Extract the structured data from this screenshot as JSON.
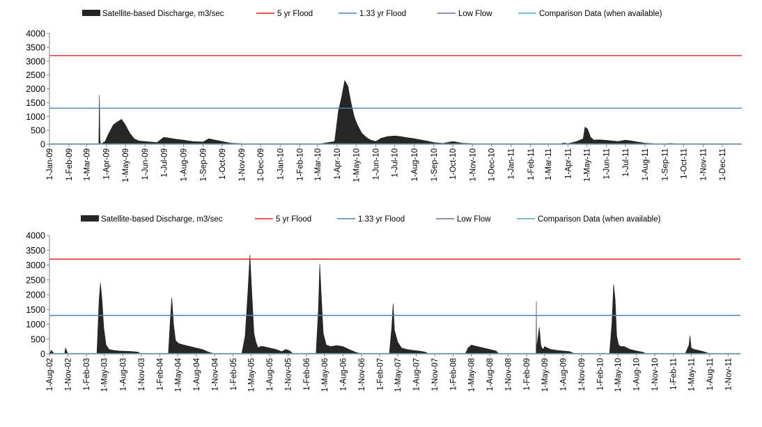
{
  "legend": {
    "discharge": "Satellite-based Discharge, m3/sec",
    "flood5": "5 yr Flood",
    "flood133": "1.33 yr Flood",
    "lowflow": "Low Flow",
    "comparison": "Comparison Data (when available)"
  },
  "colors": {
    "discharge": "#262626",
    "flood5": "#e02020",
    "flood133": "#4f81bd",
    "lowflow": "#8064a2",
    "comparison": "#4bacc6"
  },
  "chart_data": [
    {
      "type": "area",
      "ylim": [
        0,
        4000
      ],
      "yticks": [
        0,
        500,
        1000,
        1500,
        2000,
        2500,
        3000,
        3500,
        4000
      ],
      "ytick_labels": [
        "0",
        "500",
        "1000",
        "1500",
        "2000",
        "2500",
        "3000",
        "3500",
        "4000"
      ],
      "xlim": [
        "2009-01-01",
        "2012-01-01"
      ],
      "xticks": [
        "2009-01-01",
        "2009-02-01",
        "2009-03-01",
        "2009-04-01",
        "2009-05-01",
        "2009-06-01",
        "2009-07-01",
        "2009-08-01",
        "2009-09-01",
        "2009-10-01",
        "2009-11-01",
        "2009-12-01",
        "2010-01-01",
        "2010-02-01",
        "2010-03-01",
        "2010-04-01",
        "2010-05-01",
        "2010-06-01",
        "2010-07-01",
        "2010-08-01",
        "2010-09-01",
        "2010-10-01",
        "2010-11-01",
        "2010-12-01",
        "2011-01-01",
        "2011-02-01",
        "2011-03-01",
        "2011-04-01",
        "2011-05-01",
        "2011-06-01",
        "2011-07-01",
        "2011-08-01",
        "2011-09-01",
        "2011-10-01",
        "2011-11-01",
        "2011-12-01"
      ],
      "xtick_labels": [
        "1-Jan-09",
        "1-Feb-09",
        "1-Mar-09",
        "1-Apr-09",
        "1-May-09",
        "1-Jun-09",
        "1-Jul-09",
        "1-Aug-09",
        "1-Sep-09",
        "1-Oct-09",
        "1-Nov-09",
        "1-Dec-09",
        "1-Jan-10",
        "1-Feb-10",
        "1-Mar-10",
        "1-Apr-10",
        "1-May-10",
        "1-Jun-10",
        "1-Jul-10",
        "1-Aug-10",
        "1-Sep-10",
        "1-Oct-10",
        "1-Nov-10",
        "1-Dec-10",
        "1-Jan-11",
        "1-Feb-11",
        "1-Mar-11",
        "1-Apr-11",
        "1-May-11",
        "1-Jun-11",
        "1-Jul-11",
        "1-Aug-11",
        "1-Sep-11",
        "1-Oct-11",
        "1-Nov-11",
        "1-Dec-11"
      ],
      "flood5": 3200,
      "flood133": 1300,
      "lowflow": 0,
      "comparison": 0,
      "discharge": {
        "x": [
          "2009-01-01",
          "2009-03-10",
          "2009-03-20",
          "2009-03-21",
          "2009-03-22",
          "2009-03-23",
          "2009-03-30",
          "2009-04-05",
          "2009-04-12",
          "2009-04-18",
          "2009-04-25",
          "2009-05-01",
          "2009-05-08",
          "2009-05-15",
          "2009-05-22",
          "2009-06-01",
          "2009-06-10",
          "2009-06-20",
          "2009-07-01",
          "2009-07-10",
          "2009-07-20",
          "2009-08-01",
          "2009-08-15",
          "2009-09-01",
          "2009-09-10",
          "2009-09-20",
          "2009-10-01",
          "2009-10-15",
          "2009-11-01",
          "2009-12-01",
          "2010-01-01",
          "2010-03-01",
          "2010-03-28",
          "2010-04-03",
          "2010-04-08",
          "2010-04-13",
          "2010-04-18",
          "2010-04-23",
          "2010-04-28",
          "2010-05-03",
          "2010-05-10",
          "2010-05-17",
          "2010-05-24",
          "2010-06-01",
          "2010-06-10",
          "2010-06-20",
          "2010-07-01",
          "2010-07-10",
          "2010-07-20",
          "2010-08-01",
          "2010-08-10",
          "2010-08-20",
          "2010-09-01",
          "2010-09-15",
          "2010-10-01",
          "2010-10-15",
          "2010-11-01",
          "2010-12-01",
          "2011-01-01",
          "2011-03-20",
          "2011-03-25",
          "2011-04-01",
          "2011-04-15",
          "2011-04-25",
          "2011-04-28",
          "2011-05-02",
          "2011-05-07",
          "2011-05-12",
          "2011-05-20",
          "2011-06-01",
          "2011-06-10",
          "2011-06-20",
          "2011-07-01",
          "2011-07-10",
          "2011-07-20",
          "2011-08-01",
          "2011-08-15",
          "2011-09-01",
          "2011-09-10",
          "2011-09-20",
          "2011-10-01",
          "2011-11-01",
          "2011-12-31"
        ],
        "y": [
          0,
          0,
          0,
          1780,
          150,
          0,
          100,
          400,
          700,
          800,
          900,
          700,
          400,
          200,
          120,
          100,
          80,
          60,
          250,
          220,
          180,
          150,
          100,
          80,
          200,
          150,
          100,
          40,
          20,
          5,
          0,
          0,
          100,
          1200,
          1700,
          2300,
          2100,
          1500,
          1000,
          700,
          400,
          250,
          150,
          100,
          220,
          280,
          300,
          280,
          240,
          200,
          160,
          120,
          60,
          30,
          100,
          40,
          20,
          10,
          0,
          0,
          50,
          20,
          100,
          200,
          620,
          550,
          250,
          150,
          160,
          140,
          120,
          100,
          150,
          120,
          80,
          40,
          20,
          10,
          30,
          10,
          5,
          0,
          0
        ]
      }
    },
    {
      "type": "area",
      "ylim": [
        0,
        4000
      ],
      "yticks": [
        0,
        500,
        1000,
        1500,
        2000,
        2500,
        3000,
        3500,
        4000
      ],
      "ytick_labels": [
        "0",
        "500",
        "1000",
        "1500",
        "2000",
        "2500",
        "3000",
        "3500",
        "4000"
      ],
      "xlim": [
        "2002-08-01",
        "2012-01-01"
      ],
      "xticks": [
        "2002-08-01",
        "2002-11-01",
        "2003-02-01",
        "2003-05-01",
        "2003-08-01",
        "2003-11-01",
        "2004-02-01",
        "2004-05-01",
        "2004-08-01",
        "2004-11-01",
        "2005-02-01",
        "2005-05-01",
        "2005-08-01",
        "2005-11-01",
        "2006-02-01",
        "2006-05-01",
        "2006-08-01",
        "2006-11-01",
        "2007-02-01",
        "2007-05-01",
        "2007-08-01",
        "2007-11-01",
        "2008-02-01",
        "2008-05-01",
        "2008-08-01",
        "2008-11-01",
        "2009-02-01",
        "2009-05-01",
        "2009-08-01",
        "2009-11-01",
        "2010-02-01",
        "2010-05-01",
        "2010-08-01",
        "2010-11-01",
        "2011-02-01",
        "2011-05-01",
        "2011-08-01",
        "2011-11-01"
      ],
      "xtick_labels": [
        "1-Aug-02",
        "1-Nov-02",
        "1-Feb-03",
        "1-May-03",
        "1-Aug-03",
        "1-Nov-03",
        "1-Feb-04",
        "1-May-04",
        "1-Aug-04",
        "1-Nov-04",
        "1-Feb-05",
        "1-May-05",
        "1-Aug-05",
        "1-Nov-05",
        "1-Feb-06",
        "1-May-06",
        "1-Aug-06",
        "1-Nov-06",
        "1-Feb-07",
        "1-May-07",
        "1-Aug-07",
        "1-Nov-07",
        "1-Feb-08",
        "1-May-08",
        "1-Aug-08",
        "1-Nov-08",
        "1-Feb-09",
        "1-May-09",
        "1-Aug-09",
        "1-Nov-09",
        "1-Feb-10",
        "1-May-10",
        "1-Aug-10",
        "1-Nov-10",
        "1-Feb-11",
        "1-May-11",
        "1-Aug-11",
        "1-Nov-11"
      ],
      "flood5": 3200,
      "flood133": 1300,
      "lowflow": 0,
      "comparison": 0,
      "discharge": {
        "x": [
          "2002-08-01",
          "2002-08-10",
          "2002-08-25",
          "2002-09-20",
          "2002-10-15",
          "2002-10-20",
          "2002-11-01",
          "2003-03-25",
          "2003-04-05",
          "2003-04-12",
          "2003-04-20",
          "2003-04-28",
          "2003-05-10",
          "2003-05-25",
          "2003-06-15",
          "2003-07-15",
          "2003-08-15",
          "2003-09-15",
          "2003-10-15",
          "2003-11-01",
          "2004-03-15",
          "2004-03-25",
          "2004-04-01",
          "2004-04-10",
          "2004-04-20",
          "2004-05-05",
          "2004-06-01",
          "2004-07-01",
          "2004-08-01",
          "2004-09-01",
          "2004-10-01",
          "2004-11-01",
          "2005-03-15",
          "2005-04-01",
          "2005-04-15",
          "2005-04-25",
          "2005-05-05",
          "2005-05-15",
          "2005-05-25",
          "2005-06-05",
          "2005-06-15",
          "2005-07-01",
          "2005-08-01",
          "2005-09-01",
          "2005-10-01",
          "2005-10-20",
          "2005-11-10",
          "2005-11-25",
          "2005-12-10",
          "2006-03-20",
          "2006-04-01",
          "2006-04-08",
          "2006-04-15",
          "2006-04-25",
          "2006-05-10",
          "2006-06-01",
          "2006-07-01",
          "2006-08-01",
          "2006-09-01",
          "2006-10-01",
          "2006-11-01",
          "2007-03-20",
          "2007-04-01",
          "2007-04-08",
          "2007-04-15",
          "2007-05-01",
          "2007-05-20",
          "2007-06-15",
          "2007-07-15",
          "2007-08-15",
          "2007-09-15",
          "2007-10-01",
          "2008-04-01",
          "2008-04-15",
          "2008-05-01",
          "2008-06-01",
          "2008-07-01",
          "2008-08-01",
          "2008-09-01",
          "2008-09-15",
          "2009-03-15",
          "2009-03-20",
          "2009-03-21",
          "2009-03-22",
          "2009-04-05",
          "2009-04-12",
          "2009-04-18",
          "2009-04-25",
          "2009-05-01",
          "2009-05-15",
          "2009-06-01",
          "2009-07-01",
          "2009-08-01",
          "2009-09-01",
          "2009-10-01",
          "2010-03-20",
          "2010-04-01",
          "2010-04-10",
          "2010-04-18",
          "2010-04-25",
          "2010-05-05",
          "2010-05-15",
          "2010-06-01",
          "2010-07-01",
          "2010-08-01",
          "2010-09-01",
          "2010-09-20",
          "2011-04-01",
          "2011-04-20",
          "2011-04-25",
          "2011-05-01",
          "2011-05-15",
          "2011-06-01",
          "2011-07-01",
          "2011-07-20",
          "2011-08-15",
          "2012-01-01"
        ],
        "y": [
          0,
          120,
          0,
          0,
          0,
          200,
          0,
          0,
          1800,
          2400,
          1800,
          900,
          300,
          150,
          120,
          100,
          90,
          80,
          60,
          0,
          0,
          1200,
          1900,
          1000,
          450,
          350,
          300,
          250,
          200,
          150,
          60,
          0,
          0,
          600,
          2100,
          3350,
          2000,
          700,
          400,
          200,
          250,
          250,
          200,
          150,
          80,
          150,
          100,
          0,
          0,
          0,
          1500,
          3050,
          2000,
          700,
          300,
          250,
          280,
          250,
          150,
          60,
          0,
          0,
          900,
          1700,
          800,
          400,
          200,
          150,
          120,
          100,
          60,
          0,
          0,
          200,
          300,
          250,
          200,
          150,
          100,
          0,
          0,
          0,
          1780,
          200,
          900,
          300,
          200,
          150,
          250,
          200,
          150,
          120,
          100,
          80,
          0,
          0,
          1000,
          2350,
          1800,
          600,
          300,
          250,
          250,
          150,
          100,
          60,
          0,
          0,
          300,
          620,
          200,
          150,
          130,
          80,
          30,
          0,
          0
        ]
      }
    }
  ]
}
